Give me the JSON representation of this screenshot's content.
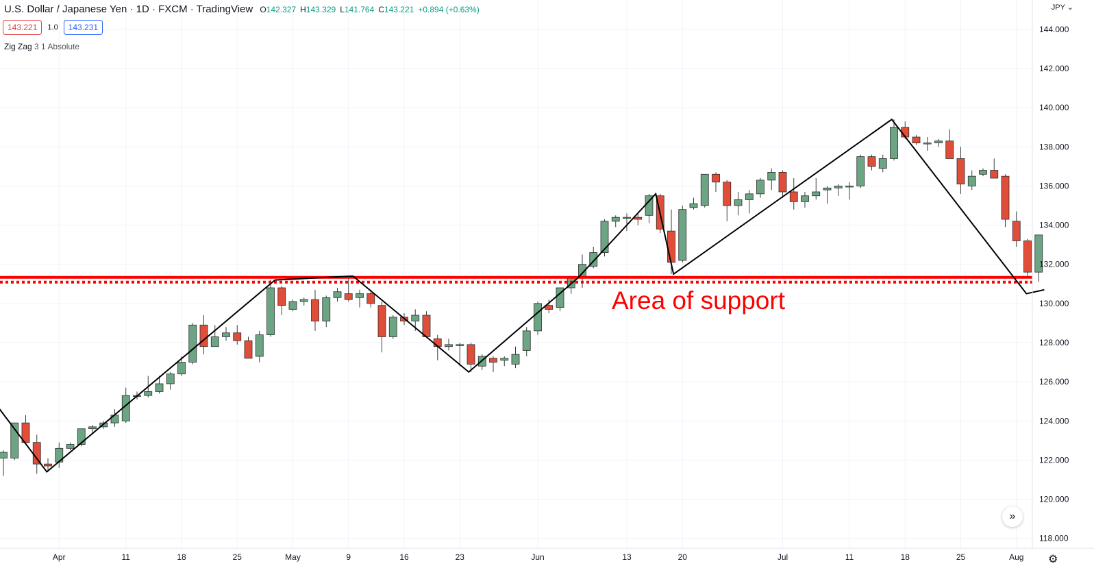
{
  "header": {
    "title": "U.S. Dollar / Japanese Yen · 1D · FXCM · TradingView",
    "ohlc": [
      {
        "k": "O",
        "v": "142.327"
      },
      {
        "k": "H",
        "v": "143.329"
      },
      {
        "k": "L",
        "v": "141.764"
      },
      {
        "k": "C",
        "v": "143.221"
      },
      {
        "k": "",
        "v": "+0.894 (+0.63%)"
      }
    ]
  },
  "toolbar": {
    "sell_price": "143.221",
    "spread": "1.0",
    "buy_price": "143.231"
  },
  "indicator": {
    "name": "Zig Zag",
    "params": "3 1 Absolute"
  },
  "price_axis": {
    "currency": "JPY"
  },
  "colors": {
    "up": "#6ca584",
    "down": "#e04e3a",
    "support": "#ff0000",
    "zigzag": "#000000",
    "grid": "#f0f3fa"
  },
  "icons": {
    "scroll": "double-chevron-right-icon",
    "settings": "gear-icon"
  },
  "chart_data": {
    "type": "candlestick",
    "instrument": "USD/JPY",
    "interval": "1D",
    "ylim": [
      117.5,
      145.5
    ],
    "yticks": [
      "118.000",
      "120.000",
      "122.000",
      "124.000",
      "126.000",
      "128.000",
      "130.000",
      "132.000",
      "134.000",
      "136.000",
      "138.000",
      "140.000",
      "142.000",
      "144.000"
    ],
    "xticks": [
      {
        "label": "Apr",
        "i": 5
      },
      {
        "label": "11",
        "i": 11
      },
      {
        "label": "18",
        "i": 16
      },
      {
        "label": "25",
        "i": 21
      },
      {
        "label": "May",
        "i": 26
      },
      {
        "label": "9",
        "i": 31
      },
      {
        "label": "16",
        "i": 36
      },
      {
        "label": "23",
        "i": 41
      },
      {
        "label": "Jun",
        "i": 48
      },
      {
        "label": "13",
        "i": 56
      },
      {
        "label": "20",
        "i": 61
      },
      {
        "label": "Jul",
        "i": 70
      },
      {
        "label": "11",
        "i": 76
      },
      {
        "label": "18",
        "i": 81
      },
      {
        "label": "25",
        "i": 86
      },
      {
        "label": "Aug",
        "i": 91
      }
    ],
    "candles": [
      [
        122.1,
        122.5,
        121.2,
        122.4
      ],
      [
        122.1,
        123.9,
        122.0,
        123.9
      ],
      [
        123.9,
        124.3,
        122.8,
        122.9
      ],
      [
        122.9,
        123.3,
        121.3,
        121.8
      ],
      [
        121.8,
        122.1,
        121.5,
        121.7
      ],
      [
        121.9,
        122.9,
        121.6,
        122.6
      ],
      [
        122.6,
        122.9,
        122.5,
        122.8
      ],
      [
        122.8,
        123.6,
        122.7,
        123.6
      ],
      [
        123.6,
        123.8,
        123.4,
        123.7
      ],
      [
        123.7,
        124.0,
        123.6,
        123.9
      ],
      [
        123.9,
        124.6,
        123.7,
        124.3
      ],
      [
        124.0,
        125.7,
        123.9,
        125.3
      ],
      [
        125.3,
        125.5,
        125.1,
        125.3
      ],
      [
        125.3,
        126.3,
        125.2,
        125.5
      ],
      [
        125.5,
        126.3,
        125.4,
        125.9
      ],
      [
        125.9,
        126.5,
        125.6,
        126.4
      ],
      [
        126.4,
        127.3,
        126.3,
        127.0
      ],
      [
        127.0,
        129.0,
        126.9,
        128.9
      ],
      [
        128.9,
        129.4,
        127.4,
        127.8
      ],
      [
        127.8,
        128.9,
        127.8,
        128.3
      ],
      [
        128.3,
        128.8,
        128.1,
        128.5
      ],
      [
        128.5,
        128.9,
        127.9,
        128.1
      ],
      [
        128.1,
        128.3,
        127.2,
        127.2
      ],
      [
        127.3,
        128.6,
        127.0,
        128.4
      ],
      [
        128.4,
        131.2,
        128.3,
        130.8
      ],
      [
        130.8,
        130.9,
        129.4,
        129.9
      ],
      [
        129.7,
        130.2,
        129.6,
        130.1
      ],
      [
        130.1,
        130.3,
        129.9,
        130.2
      ],
      [
        130.2,
        130.7,
        128.6,
        129.1
      ],
      [
        129.1,
        130.4,
        128.8,
        130.3
      ],
      [
        130.3,
        130.8,
        130.1,
        130.6
      ],
      [
        130.5,
        131.3,
        130.1,
        130.2
      ],
      [
        130.3,
        130.7,
        129.8,
        130.5
      ],
      [
        130.5,
        130.7,
        129.8,
        130.0
      ],
      [
        129.9,
        130.1,
        127.5,
        128.3
      ],
      [
        128.3,
        129.4,
        128.2,
        129.3
      ],
      [
        129.3,
        129.5,
        128.9,
        129.1
      ],
      [
        129.1,
        129.7,
        128.6,
        129.4
      ],
      [
        129.4,
        129.6,
        128.3,
        128.3
      ],
      [
        128.2,
        128.4,
        127.1,
        127.8
      ],
      [
        127.8,
        128.2,
        127.6,
        127.9
      ],
      [
        127.9,
        128.0,
        126.8,
        127.9
      ],
      [
        127.9,
        128.0,
        126.5,
        126.9
      ],
      [
        126.8,
        127.4,
        126.6,
        127.3
      ],
      [
        127.2,
        127.3,
        126.5,
        127.0
      ],
      [
        127.1,
        127.3,
        126.8,
        127.2
      ],
      [
        126.9,
        127.8,
        126.7,
        127.4
      ],
      [
        127.6,
        128.8,
        127.3,
        128.6
      ],
      [
        128.6,
        130.1,
        128.4,
        130.0
      ],
      [
        129.9,
        130.2,
        129.5,
        129.7
      ],
      [
        129.8,
        130.8,
        129.6,
        130.8
      ],
      [
        130.8,
        131.3,
        130.5,
        131.3
      ],
      [
        131.3,
        132.5,
        130.8,
        132.0
      ],
      [
        131.9,
        132.9,
        131.8,
        132.6
      ],
      [
        132.6,
        134.3,
        132.4,
        134.2
      ],
      [
        134.2,
        134.5,
        133.9,
        134.4
      ],
      [
        134.4,
        134.6,
        133.7,
        134.4
      ],
      [
        134.4,
        134.6,
        134.0,
        134.3
      ],
      [
        134.5,
        135.6,
        134.1,
        135.5
      ],
      [
        135.5,
        135.6,
        133.6,
        133.8
      ],
      [
        133.7,
        134.8,
        131.5,
        132.1
      ],
      [
        132.2,
        135.0,
        132.1,
        134.8
      ],
      [
        134.9,
        135.4,
        134.8,
        135.1
      ],
      [
        135.0,
        136.6,
        134.9,
        136.6
      ],
      [
        136.6,
        136.7,
        135.7,
        136.2
      ],
      [
        136.2,
        136.3,
        134.2,
        135.0
      ],
      [
        135.0,
        135.7,
        134.5,
        135.3
      ],
      [
        135.3,
        135.8,
        134.6,
        135.6
      ],
      [
        135.6,
        136.4,
        135.4,
        136.3
      ],
      [
        136.3,
        136.9,
        135.8,
        136.7
      ],
      [
        136.7,
        136.8,
        135.4,
        135.7
      ],
      [
        135.7,
        136.4,
        134.8,
        135.2
      ],
      [
        135.2,
        135.7,
        134.9,
        135.5
      ],
      [
        135.5,
        136.4,
        135.3,
        135.7
      ],
      [
        135.8,
        136.0,
        135.1,
        135.9
      ],
      [
        135.9,
        136.1,
        135.5,
        136.0
      ],
      [
        136.0,
        136.2,
        135.3,
        136.0
      ],
      [
        136.0,
        137.6,
        135.9,
        137.5
      ],
      [
        137.5,
        137.6,
        136.8,
        137.0
      ],
      [
        136.9,
        137.6,
        136.7,
        137.4
      ],
      [
        137.4,
        139.4,
        137.3,
        139.0
      ],
      [
        139.0,
        139.3,
        138.4,
        138.5
      ],
      [
        138.5,
        138.6,
        138.1,
        138.2
      ],
      [
        138.2,
        138.5,
        137.8,
        138.2
      ],
      [
        138.2,
        138.4,
        138.0,
        138.3
      ],
      [
        138.3,
        138.9,
        137.4,
        137.4
      ],
      [
        137.4,
        138.0,
        135.6,
        136.1
      ],
      [
        136.0,
        136.8,
        135.8,
        136.5
      ],
      [
        136.6,
        136.9,
        136.5,
        136.8
      ],
      [
        136.8,
        137.4,
        136.4,
        136.4
      ],
      [
        136.5,
        136.6,
        133.9,
        134.3
      ],
      [
        134.2,
        134.7,
        132.9,
        133.2
      ],
      [
        133.2,
        133.3,
        131.4,
        131.6
      ],
      [
        131.6,
        133.5,
        131.1,
        133.5
      ]
    ],
    "zigzag": [
      [
        -3,
        125.0
      ],
      [
        -1,
        125.1
      ],
      [
        3.9,
        121.4
      ],
      [
        24.4,
        131.2
      ],
      [
        31.4,
        131.4
      ],
      [
        41.8,
        126.5
      ],
      [
        51.6,
        131.3
      ],
      [
        58.6,
        135.6
      ],
      [
        60.2,
        131.5
      ],
      [
        79.8,
        139.4
      ],
      [
        91.9,
        130.5
      ],
      [
        93.5,
        130.7
      ]
    ],
    "support": {
      "price": 131.3,
      "label": "Area of support"
    }
  }
}
